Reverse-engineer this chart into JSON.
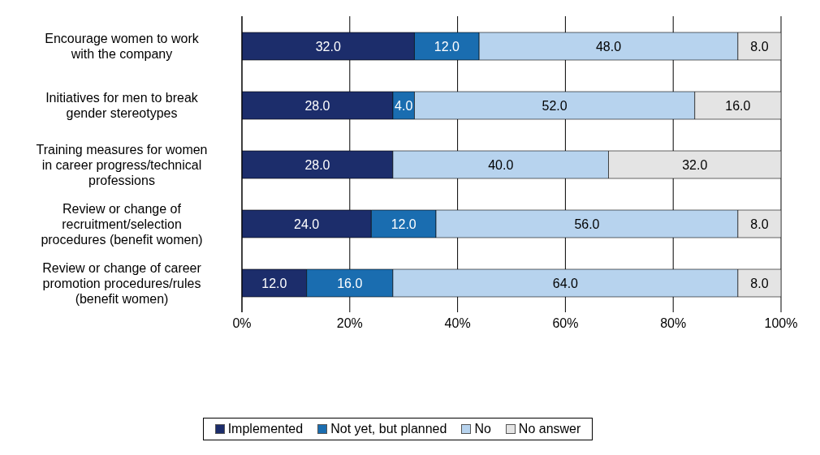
{
  "chart_data": {
    "type": "bar",
    "orientation": "horizontal",
    "stacked": true,
    "categories": [
      "Encourage women to work\nwith the company",
      "Initiatives for men to break\ngender stereotypes",
      "Training measures for women\nin career progress/technical\nprofessions",
      "Review or change of\nrecruitment/selection\nprocedures (benefit women)",
      "Review or change of career\npromotion procedures/rules\n(benefit women)"
    ],
    "series": [
      {
        "name": "Implemented",
        "color": "#1c2d6b",
        "values": [
          32,
          28,
          28,
          24,
          12
        ],
        "value_labels": [
          "32.0",
          "28.0",
          "28.0",
          "24.0",
          "12.0"
        ]
      },
      {
        "name": "Not yet, but planned",
        "color": "#1a6db0",
        "values": [
          12,
          4,
          null,
          12,
          16
        ],
        "value_labels": [
          "12.0",
          "4.0",
          null,
          "12.0",
          "16.0"
        ]
      },
      {
        "name": "No",
        "color": "#b7d3ee",
        "values": [
          48,
          52,
          40,
          56,
          64
        ],
        "value_labels": [
          "48.0",
          "52.0",
          "40.0",
          "56.0",
          "64.0"
        ]
      },
      {
        "name": "No answer",
        "color": "#e4e4e4",
        "values": [
          8,
          16,
          32,
          8,
          8
        ],
        "value_labels": [
          "8.0",
          "16.0",
          "32.0",
          "8.0",
          "8.0"
        ]
      }
    ],
    "xlim": [
      0,
      100
    ],
    "xticks": [
      {
        "value": 0,
        "label": "0%"
      },
      {
        "value": 20,
        "label": "20%"
      },
      {
        "value": 40,
        "label": "40%"
      },
      {
        "value": 60,
        "label": "60%"
      },
      {
        "value": 80,
        "label": "80%"
      },
      {
        "value": 100,
        "label": "100%"
      }
    ],
    "grid": "x",
    "legend": "bottom"
  }
}
